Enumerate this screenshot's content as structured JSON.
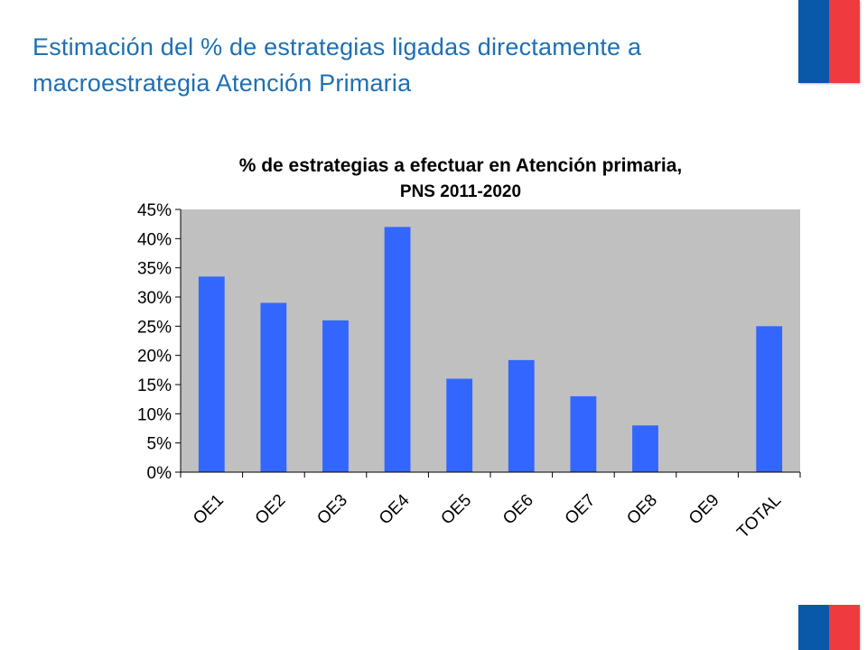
{
  "slide": {
    "title_line1": "Estimación del % de estrategias ligadas directamente a",
    "title_line2": "macroestrategia Atención Primaria"
  },
  "colors": {
    "title": "#1f6fb2",
    "bar": "#3366ff",
    "plot_bg": "#c0c0c0",
    "flag_blue": "#0a58a8",
    "flag_red": "#ef3b3f"
  },
  "chart_data": {
    "type": "bar",
    "title_line1": "% de estrategias a efectuar en Atención primaria,",
    "title_line2": "PNS 2011-2020",
    "categories": [
      "OE1",
      "OE2",
      "OE3",
      "OE4",
      "OE5",
      "OE6",
      "OE7",
      "OE8",
      "OE9",
      "TOTAL"
    ],
    "values": [
      33.5,
      29,
      26,
      42,
      16,
      19.2,
      13,
      8,
      0,
      25
    ],
    "ylim": [
      0,
      45
    ],
    "yticks": [
      0,
      5,
      10,
      15,
      20,
      25,
      30,
      35,
      40,
      45
    ],
    "ytick_labels": [
      "0%",
      "5%",
      "10%",
      "15%",
      "20%",
      "25%",
      "30%",
      "35%",
      "40%",
      "45%"
    ],
    "xlabel": "",
    "ylabel": "",
    "grid": false,
    "legend": "none"
  }
}
